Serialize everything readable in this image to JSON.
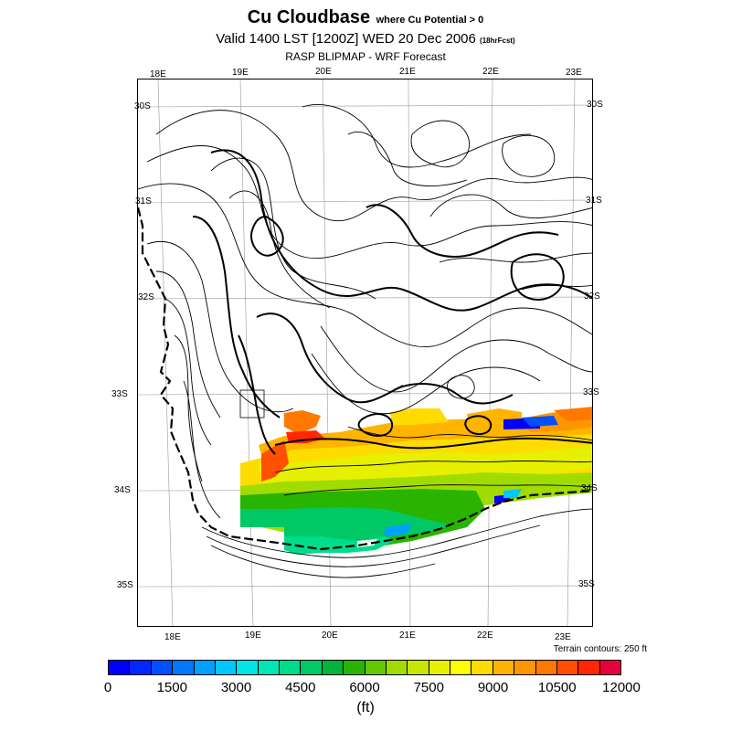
{
  "title": {
    "main": "Cu Cloudbase",
    "qualifier": "where Cu Potential > 0",
    "valid": "Valid 1400 LST [1200Z] WED 20 Dec 2006",
    "forecast_hours": "(18hrFcst)",
    "source": "RASP BLIPMAP - WRF Forecast"
  },
  "map": {
    "top_lon_labels": [
      "18E",
      "19E",
      "20E",
      "21E",
      "22E",
      "23E"
    ],
    "bottom_lon_labels": [
      "18E",
      "19E",
      "20E",
      "21E",
      "22E",
      "23E"
    ],
    "left_lat_labels": [
      "30S",
      "31S",
      "32S",
      "33S",
      "34S",
      "35S"
    ],
    "right_lat_labels": [
      "30S",
      "31S",
      "32S",
      "33S",
      "34S",
      "35S"
    ],
    "terrain_note": "Terrain contours: 250 ft"
  },
  "legend": {
    "colors": [
      "#0000ff",
      "#0028ff",
      "#0050ff",
      "#0078ff",
      "#00a0ff",
      "#00c8ff",
      "#00e6e6",
      "#00e6b4",
      "#00dc8c",
      "#00c864",
      "#00b43c",
      "#28b400",
      "#64c800",
      "#a0dc00",
      "#c8e600",
      "#e6f000",
      "#ffff00",
      "#ffdc00",
      "#ffb400",
      "#ff9600",
      "#ff7800",
      "#ff5000",
      "#ff2800",
      "#e6003c"
    ],
    "tick_labels": [
      "0",
      "1500",
      "3000",
      "4500",
      "6000",
      "7500",
      "9000",
      "10500",
      "12000"
    ],
    "unit": "(ft)"
  }
}
